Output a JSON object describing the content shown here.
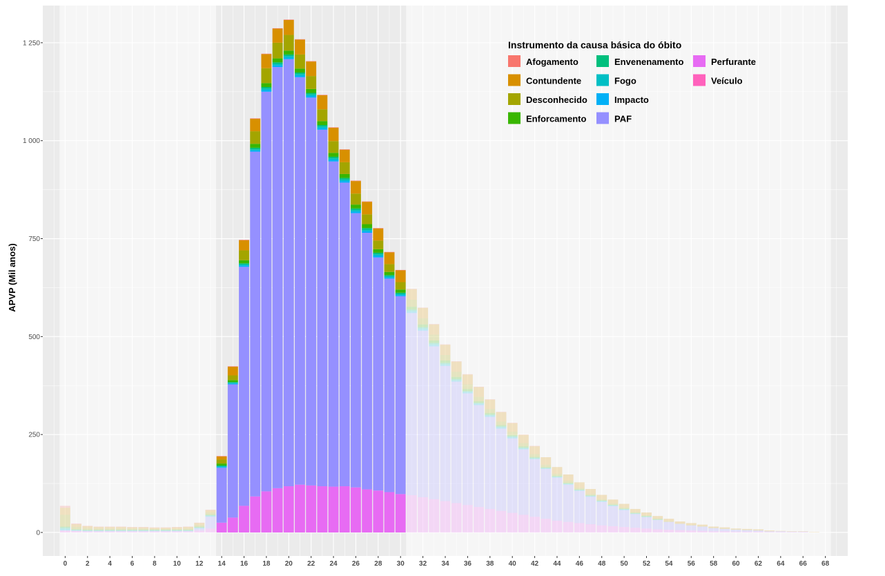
{
  "chart_data": {
    "type": "bar",
    "stacked": true,
    "title": "",
    "xlabel": "",
    "ylabel": "APVP (Mil anos)",
    "ylim": [
      -60,
      1345
    ],
    "yticks": [
      0,
      250,
      500,
      750,
      1000,
      1250
    ],
    "ytick_labels": [
      "0",
      "250",
      "500",
      "750",
      "1 000",
      "1 250"
    ],
    "xticks": [
      0,
      2,
      4,
      6,
      8,
      10,
      12,
      14,
      16,
      18,
      20,
      22,
      24,
      26,
      28,
      30,
      32,
      34,
      36,
      38,
      40,
      42,
      44,
      46,
      48,
      50,
      52,
      54,
      56,
      58,
      60,
      62,
      64,
      66,
      68
    ],
    "xlim": [
      -2,
      70
    ],
    "highlight_range": [
      14,
      30
    ],
    "grid": true,
    "legend": {
      "title": "Instrumento da causa básica do óbito",
      "placement": "top-right",
      "items": [
        "Afogamento",
        "Contundente",
        "Desconhecido",
        "Enforcamento",
        "Envenenamento",
        "Fogo",
        "Impacto",
        "PAF",
        "Perfurante",
        "Veículo"
      ]
    },
    "colors": {
      "Afogamento": "#F8766D",
      "Contundente": "#D89000",
      "Desconhecido": "#A3A500",
      "Enforcamento": "#39B600",
      "Envenenamento": "#00BF7D",
      "Fogo": "#00BFC4",
      "Impacto": "#00B0F6",
      "PAF": "#9590FF",
      "Perfurante": "#E76BF3",
      "Veículo": "#FF62BC"
    },
    "x": [
      0,
      1,
      2,
      3,
      4,
      5,
      6,
      7,
      8,
      9,
      10,
      11,
      12,
      13,
      14,
      15,
      16,
      17,
      18,
      19,
      20,
      21,
      22,
      23,
      24,
      25,
      26,
      27,
      28,
      29,
      30,
      31,
      32,
      33,
      34,
      35,
      36,
      37,
      38,
      39,
      40,
      41,
      42,
      43,
      44,
      45,
      46,
      47,
      48,
      49,
      50,
      51,
      52,
      53,
      54,
      55,
      56,
      57,
      58,
      59,
      60,
      61,
      62,
      63,
      64,
      65,
      66,
      67,
      68
    ],
    "series": [
      {
        "name": "Perfurante",
        "values": [
          5,
          4,
          3,
          3,
          3,
          3,
          3,
          3,
          3,
          3,
          3,
          3,
          5,
          10,
          25,
          38,
          68,
          92,
          105,
          113,
          118,
          122,
          120,
          118,
          117,
          118,
          115,
          110,
          107,
          103,
          98,
          95,
          90,
          85,
          80,
          75,
          70,
          65,
          60,
          55,
          50,
          45,
          40,
          35,
          30,
          27,
          24,
          21,
          18,
          16,
          14,
          12,
          10,
          8,
          7,
          6,
          5,
          4,
          3,
          3,
          2,
          2,
          2,
          1,
          1,
          1,
          1,
          0,
          0
        ]
      },
      {
        "name": "PAF",
        "values": [
          0,
          0,
          0,
          0,
          0,
          0,
          0,
          0,
          0,
          0,
          0,
          0,
          5,
          30,
          140,
          340,
          610,
          880,
          1020,
          1075,
          1090,
          1040,
          990,
          910,
          830,
          775,
          700,
          655,
          595,
          545,
          505,
          465,
          425,
          390,
          345,
          310,
          285,
          260,
          235,
          210,
          190,
          167,
          147,
          127,
          110,
          95,
          82,
          70,
          60,
          51,
          43,
          35,
          29,
          24,
          20,
          16,
          13,
          11,
          8,
          6,
          5,
          4,
          3,
          2,
          2,
          1,
          1,
          0,
          0
        ]
      },
      {
        "name": "Impacto",
        "values": [
          2,
          1,
          1,
          1,
          1,
          1,
          1,
          1,
          1,
          1,
          1,
          1,
          1,
          1,
          2,
          2,
          3,
          3,
          4,
          4,
          4,
          4,
          4,
          4,
          4,
          4,
          4,
          4,
          4,
          3,
          3,
          3,
          3,
          3,
          2,
          2,
          2,
          2,
          2,
          2,
          2,
          1,
          1,
          1,
          1,
          1,
          1,
          1,
          1,
          1,
          1,
          0,
          0,
          0,
          0,
          0,
          0,
          0,
          0,
          0,
          0,
          0,
          0,
          0,
          0,
          0,
          0,
          0,
          0
        ]
      },
      {
        "name": "Fogo",
        "values": [
          3,
          1,
          1,
          1,
          1,
          1,
          1,
          1,
          1,
          1,
          1,
          1,
          1,
          2,
          2,
          2,
          3,
          3,
          4,
          4,
          4,
          4,
          4,
          4,
          4,
          4,
          4,
          4,
          4,
          3,
          3,
          3,
          3,
          3,
          3,
          2,
          2,
          2,
          2,
          2,
          2,
          2,
          1,
          1,
          1,
          1,
          1,
          1,
          1,
          1,
          1,
          1,
          1,
          0,
          0,
          0,
          0,
          0,
          0,
          0,
          0,
          0,
          0,
          0,
          0,
          0,
          0,
          0,
          0
        ]
      },
      {
        "name": "Envenenamento",
        "values": [
          3,
          1,
          1,
          1,
          1,
          1,
          1,
          1,
          1,
          1,
          1,
          1,
          1,
          1,
          2,
          2,
          3,
          4,
          4,
          4,
          4,
          4,
          4,
          4,
          4,
          4,
          4,
          4,
          4,
          3,
          3,
          3,
          3,
          3,
          3,
          3,
          2,
          2,
          2,
          2,
          2,
          2,
          2,
          1,
          1,
          1,
          1,
          1,
          1,
          1,
          1,
          1,
          1,
          1,
          0,
          0,
          0,
          0,
          0,
          0,
          0,
          0,
          0,
          0,
          0,
          0,
          0,
          0,
          0
        ]
      },
      {
        "name": "Enforcamento",
        "values": [
          2,
          1,
          1,
          1,
          1,
          1,
          1,
          1,
          1,
          1,
          1,
          1,
          2,
          2,
          5,
          5,
          8,
          10,
          10,
          10,
          10,
          10,
          10,
          10,
          10,
          10,
          10,
          10,
          9,
          8,
          8,
          7,
          7,
          6,
          6,
          5,
          5,
          4,
          4,
          3,
          3,
          3,
          2,
          2,
          2,
          2,
          1,
          1,
          1,
          1,
          1,
          1,
          1,
          1,
          0,
          0,
          0,
          0,
          0,
          0,
          0,
          0,
          0,
          0,
          0,
          0,
          0,
          0,
          0
        ]
      },
      {
        "name": "Desconhecido",
        "values": [
          30,
          6,
          4,
          3,
          3,
          3,
          3,
          3,
          2,
          2,
          2,
          3,
          4,
          5,
          10,
          12,
          25,
          32,
          38,
          40,
          40,
          36,
          33,
          30,
          30,
          30,
          28,
          25,
          22,
          20,
          19,
          18,
          16,
          15,
          14,
          13,
          12,
          11,
          10,
          9,
          8,
          8,
          7,
          6,
          5,
          5,
          4,
          4,
          3,
          3,
          3,
          2,
          2,
          2,
          2,
          1,
          1,
          1,
          1,
          1,
          1,
          1,
          1,
          0,
          0,
          0,
          0,
          0,
          0
        ]
      },
      {
        "name": "Contundente",
        "values": [
          18,
          7,
          5,
          4,
          4,
          4,
          3,
          3,
          3,
          3,
          4,
          4,
          5,
          6,
          8,
          22,
          26,
          32,
          36,
          36,
          38,
          38,
          37,
          36,
          34,
          32,
          32,
          32,
          31,
          30,
          30,
          27,
          26,
          26,
          26,
          26,
          25,
          25,
          24,
          24,
          22,
          21,
          20,
          19,
          17,
          16,
          14,
          12,
          11,
          10,
          9,
          8,
          7,
          6,
          6,
          5,
          5,
          4,
          3,
          3,
          2,
          2,
          2,
          2,
          1,
          1,
          1,
          1,
          0
        ]
      },
      {
        "name": "Afogamento",
        "values": [
          5,
          2,
          1,
          1,
          1,
          1,
          1,
          1,
          1,
          1,
          1,
          1,
          1,
          1,
          1,
          1,
          1,
          1,
          1,
          1,
          1,
          1,
          1,
          1,
          1,
          1,
          1,
          1,
          1,
          1,
          1,
          1,
          1,
          1,
          1,
          1,
          1,
          1,
          1,
          1,
          1,
          1,
          1,
          0,
          0,
          0,
          0,
          0,
          0,
          0,
          0,
          0,
          0,
          0,
          0,
          0,
          0,
          0,
          0,
          0,
          0,
          0,
          0,
          0,
          0,
          0,
          0,
          0,
          0
        ]
      },
      {
        "name": "Veículo",
        "values": [
          0,
          0,
          0,
          0,
          0,
          0,
          0,
          0,
          0,
          0,
          0,
          0,
          0,
          0,
          0,
          0,
          0,
          0,
          0,
          0,
          0,
          0,
          0,
          0,
          0,
          0,
          0,
          0,
          0,
          0,
          0,
          0,
          0,
          0,
          0,
          0,
          0,
          0,
          0,
          0,
          0,
          0,
          0,
          0,
          0,
          0,
          0,
          0,
          0,
          0,
          0,
          0,
          0,
          0,
          0,
          0,
          0,
          0,
          0,
          0,
          0,
          0,
          0,
          0,
          0,
          0,
          0,
          0,
          0
        ]
      }
    ]
  }
}
